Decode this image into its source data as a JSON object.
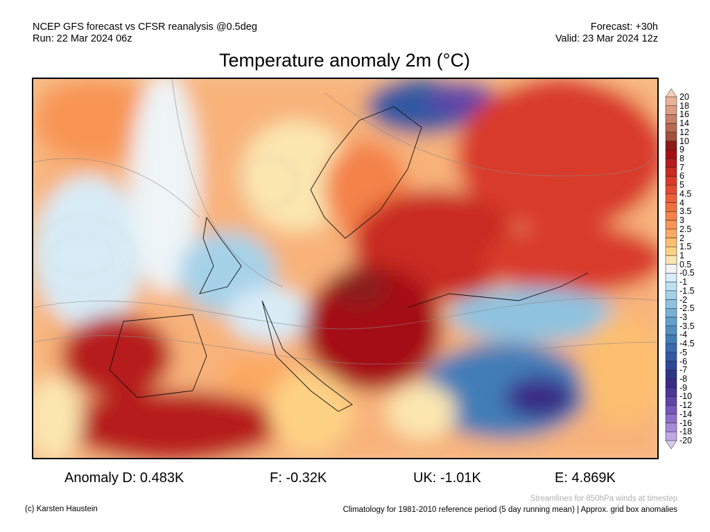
{
  "header": {
    "line1_left": "NCEP GFS forecast vs CFSR reanalysis @0.5deg",
    "line2_left": "Run: 22 Mar 2024 06z",
    "line1_right": "Forecast: +30h",
    "line2_right": "Valid: 23 Mar 2024 12z",
    "title": "Temperature anomaly 2m (°C)"
  },
  "colorbar": {
    "labels": [
      "20",
      "18",
      "16",
      "14",
      "12",
      "10",
      "9",
      "8",
      "7",
      "6",
      "5",
      "4.5",
      "4",
      "3.5",
      "3",
      "2.5",
      "2",
      "1.5",
      "1",
      "0.5",
      "-0.5",
      "-1",
      "-1.5",
      "-2",
      "-2.5",
      "-3",
      "-3.5",
      "-4",
      "-4.5",
      "-5",
      "-6",
      "-7",
      "-8",
      "-9",
      "-10",
      "-12",
      "-14",
      "-16",
      "-18",
      "-20"
    ],
    "over_color": "#f5cdb5",
    "under_color": "#d8c8f2",
    "colors": [
      "#e9b39a",
      "#dd9d83",
      "#c98068",
      "#b86a52",
      "#a4503c",
      "#8c1a1a",
      "#a50f15",
      "#b71b1e",
      "#c92a22",
      "#d93a2a",
      "#e34a33",
      "#ec5f3a",
      "#f07040",
      "#f4824a",
      "#f89555",
      "#fba960",
      "#fdbe70",
      "#fed285",
      "#fbe6b0",
      "#f2f2f2",
      "#d8ecf7",
      "#bfe0f0",
      "#a5d1e8",
      "#8ec2df",
      "#78b1d5",
      "#63a0cc",
      "#518fc2",
      "#437db8",
      "#3a6bad",
      "#3259a2",
      "#2c4896",
      "#2f3585",
      "#3a2b86",
      "#4b3596",
      "#5f45a8",
      "#7659bb",
      "#8d70cb",
      "#a68ad9",
      "#c0a8e6"
    ]
  },
  "stats": {
    "anomaly_d": "Anomaly D: 0.483K",
    "f": "F: -0.32K",
    "uk": "UK: -1.01K",
    "e": "E: 4.869K"
  },
  "footer": {
    "credit": "(c) Karsten Haustein",
    "streamlines_note": "Streamlines for 850hPa winds at timestep",
    "climatology_note": "Climatology for 1981-2010 reference period (5 day running mean) | Approx. grid box anomalies"
  }
}
